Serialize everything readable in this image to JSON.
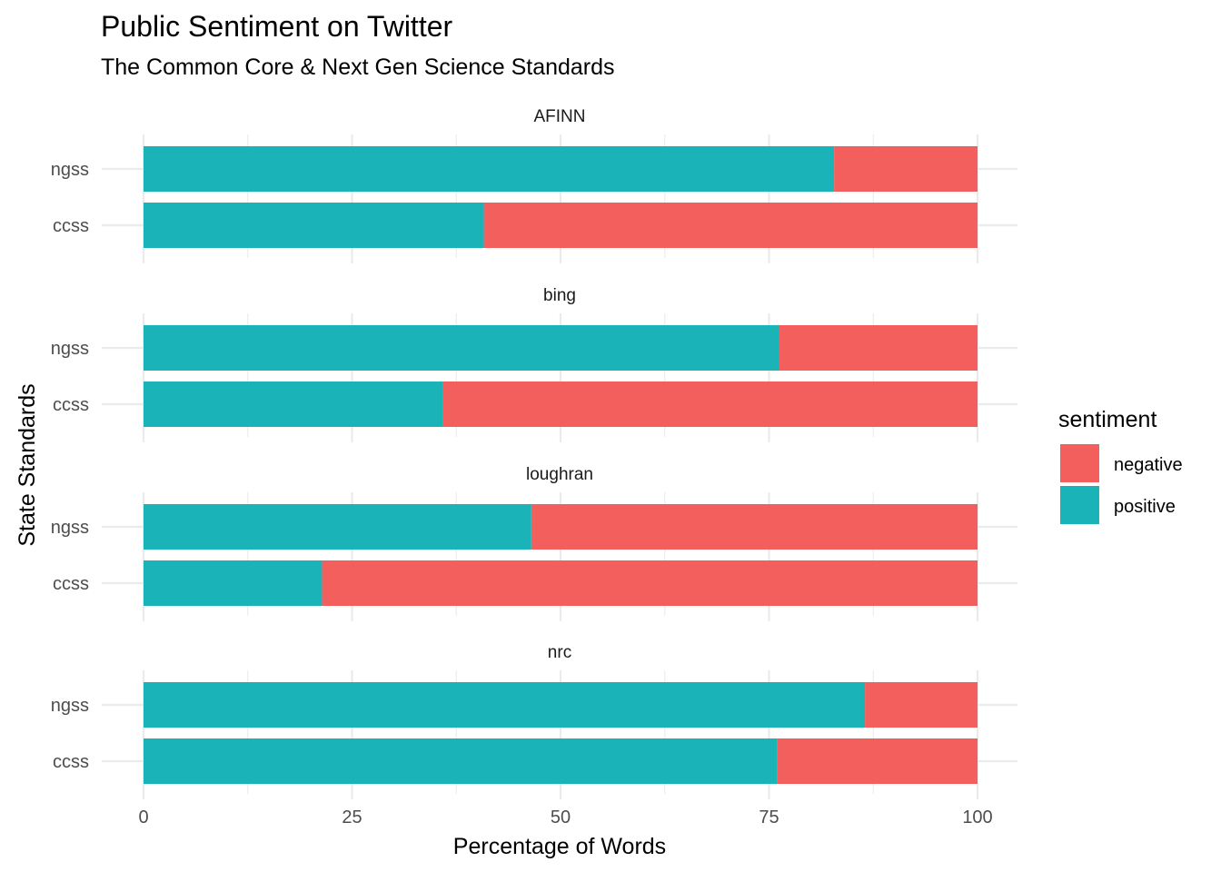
{
  "chart_data": {
    "type": "bar",
    "stacked": true,
    "orientation": "horizontal",
    "title": "Public Sentiment on Twitter",
    "subtitle": "The Common Core & Next Gen Science Standards",
    "xlabel": "Percentage of Words",
    "ylabel": "State Standards",
    "xlim": [
      0,
      100
    ],
    "xticks": [
      0,
      25,
      50,
      75,
      100
    ],
    "grid": true,
    "legend": {
      "title": "sentiment",
      "position": "right",
      "entries": [
        {
          "label": "negative",
          "color": "#F8766D"
        },
        {
          "label": "positive",
          "color": "#00BFC4"
        }
      ]
    },
    "categories": [
      "ngss",
      "ccss"
    ],
    "panels": [
      {
        "name": "AFINN",
        "positive": [
          82.8,
          40.8
        ],
        "negative": [
          17.2,
          59.2
        ]
      },
      {
        "name": "bing",
        "positive": [
          76.2,
          35.9
        ],
        "negative": [
          23.8,
          64.1
        ]
      },
      {
        "name": "loughran",
        "positive": [
          46.5,
          21.4
        ],
        "negative": [
          53.5,
          78.6
        ]
      },
      {
        "name": "nrc",
        "positive": [
          86.5,
          76.0
        ],
        "negative": [
          13.5,
          24.0
        ]
      }
    ],
    "colors": {
      "negative": "#F8766D",
      "positive": "#19B3B8",
      "negative_bar": "#F25F5C"
    }
  }
}
